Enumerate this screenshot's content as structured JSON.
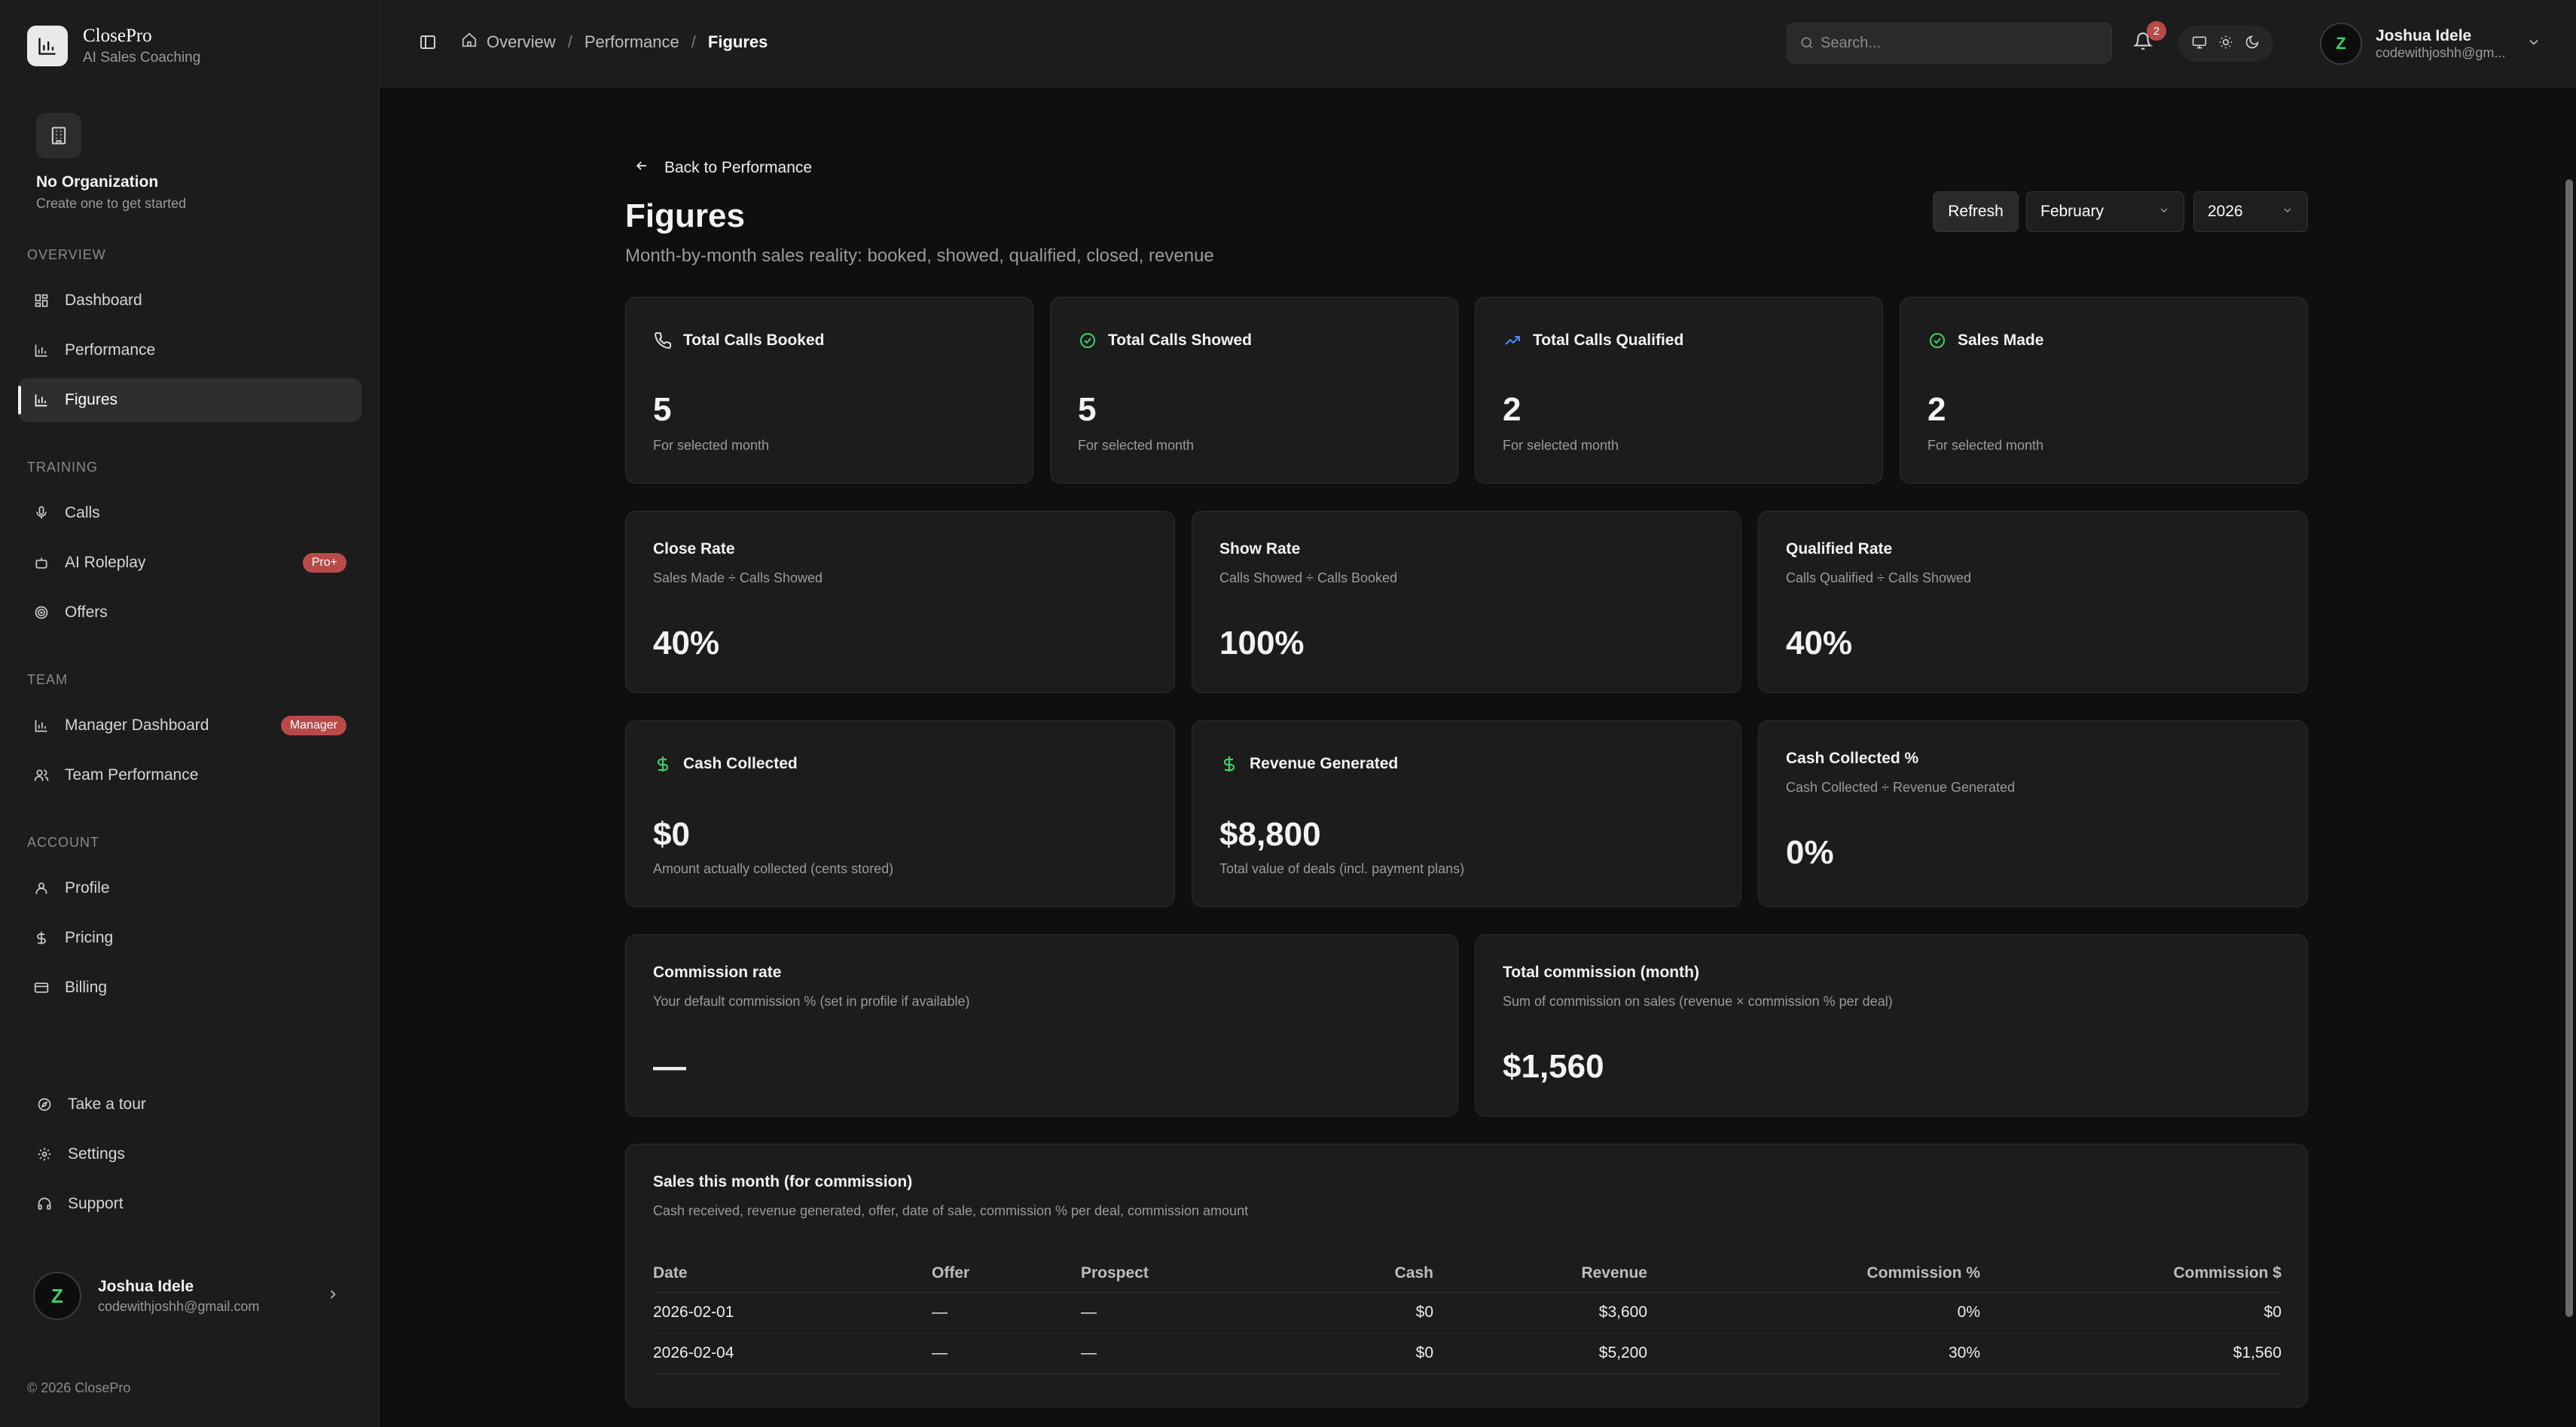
{
  "brand": {
    "name": "ClosePro",
    "tagline": "AI Sales Coaching"
  },
  "org": {
    "name": "No Organization",
    "subtitle": "Create one to get started"
  },
  "sidebar": {
    "sections": {
      "overview": "OVERVIEW",
      "training": "TRAINING",
      "team": "TEAM",
      "account": "ACCOUNT"
    },
    "items": {
      "dashboard": "Dashboard",
      "performance": "Performance",
      "figures": "Figures",
      "calls": "Calls",
      "ai_roleplay": "AI Roleplay",
      "ai_roleplay_badge": "Pro+",
      "offers": "Offers",
      "manager_dashboard": "Manager Dashboard",
      "manager_badge": "Manager",
      "team_performance": "Team Performance",
      "profile": "Profile",
      "pricing": "Pricing",
      "billing": "Billing"
    },
    "bottom": {
      "tour": "Take a tour",
      "settings": "Settings",
      "support": "Support"
    },
    "user": {
      "name": "Joshua Idele",
      "email": "codewithjoshh@gmail.com",
      "initial": "Z"
    },
    "copyright": "© 2026 ClosePro"
  },
  "topbar": {
    "breadcrumb": [
      "Overview",
      "Performance",
      "Figures"
    ],
    "separator": "/",
    "search_placeholder": "Search...",
    "notifications": "2",
    "user": {
      "name": "Joshua Idele",
      "email": "codewithjoshh@gm...",
      "initial": "Z"
    }
  },
  "page": {
    "back": "Back to Performance",
    "title": "Figures",
    "subtitle": "Month-by-month sales reality: booked, showed, qualified, closed, revenue",
    "refresh": "Refresh",
    "month": "February",
    "year": "2026"
  },
  "stats": [
    {
      "label": "Total Calls Booked",
      "value": "5",
      "note": "For selected month",
      "icon": "phone-icon"
    },
    {
      "label": "Total Calls Showed",
      "value": "5",
      "note": "For selected month",
      "icon": "check-circle-icon"
    },
    {
      "label": "Total Calls Qualified",
      "value": "2",
      "note": "For selected month",
      "icon": "trending-up-icon"
    },
    {
      "label": "Sales Made",
      "value": "2",
      "note": "For selected month",
      "icon": "check-circle-icon"
    }
  ],
  "rates": [
    {
      "label": "Close Rate",
      "desc": "Sales Made ÷ Calls Showed",
      "value": "40%"
    },
    {
      "label": "Show Rate",
      "desc": "Calls Showed ÷ Calls Booked",
      "value": "100%"
    },
    {
      "label": "Qualified Rate",
      "desc": "Calls Qualified ÷ Calls Showed",
      "value": "40%"
    }
  ],
  "money": [
    {
      "label": "Cash Collected",
      "value": "$0",
      "note": "Amount actually collected (cents stored)",
      "icon": "dollar-icon"
    },
    {
      "label": "Revenue Generated",
      "value": "$8,800",
      "note": "Total value of deals (incl. payment plans)",
      "icon": "dollar-icon"
    },
    {
      "label": "Cash Collected %",
      "desc": "Cash Collected ÷ Revenue Generated",
      "value": "0%"
    }
  ],
  "commission": [
    {
      "label": "Commission rate",
      "desc": "Your default commission % (set in profile if available)",
      "value": "—"
    },
    {
      "label": "Total commission (month)",
      "desc": "Sum of commission on sales (revenue × commission % per deal)",
      "value": "$1,560"
    }
  ],
  "sales_table": {
    "title": "Sales this month (for commission)",
    "desc": "Cash received, revenue generated, offer, date of sale, commission % per deal, commission amount",
    "headers": [
      "Date",
      "Offer",
      "Prospect",
      "Cash",
      "Revenue",
      "Commission %",
      "Commission $"
    ],
    "rows": [
      [
        "2026-02-01",
        "—",
        "—",
        "$0",
        "$3,600",
        "0%",
        "$0"
      ],
      [
        "2026-02-04",
        "—",
        "—",
        "$0",
        "$5,200",
        "30%",
        "$1,560"
      ]
    ]
  },
  "colors": {
    "accent_green": "#3ccf6a",
    "accent_blue": "#4a8cff",
    "badge_red": "#b84a4a"
  }
}
